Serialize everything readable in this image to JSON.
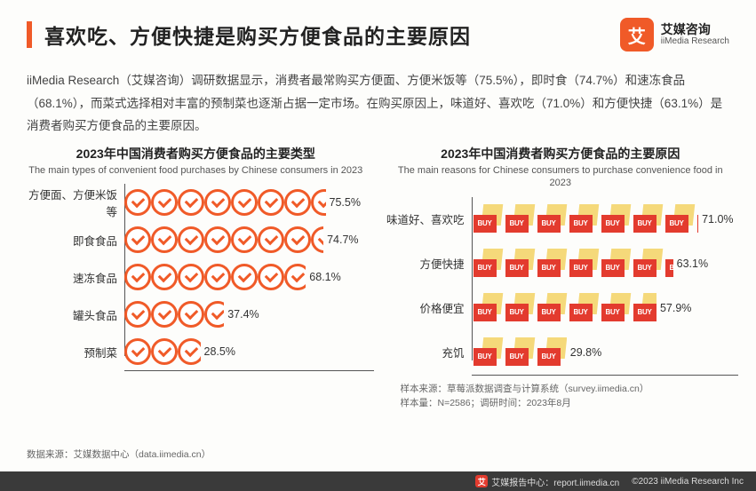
{
  "header": {
    "title": "喜欢吃、方便快捷是购买方便食品的主要原因",
    "logo_cn": "艾媒咨询",
    "logo_en": "iiMedia Research",
    "logo_glyph": "艾"
  },
  "description": "iiMedia Research（艾媒咨询）调研数据显示，消费者最常购买方便面、方便米饭等（75.5%），即时食（74.7%）和速冻食品（68.1%），而菜式选择相对丰富的预制菜也逐渐占据一定市场。在购买原因上，味道好、喜欢吃（71.0%）和方便快捷（63.1%）是消费者购买方便食品的主要原因。",
  "chart_left": {
    "title_cn": "2023年中国消费者购买方便食品的主要类型",
    "title_en": "The main types of convenient food purchases by Chinese consumers in 2023",
    "icon_color": "#f05a28",
    "icon_unit_pct": 10,
    "label_fontsize": 12.5,
    "value_fontsize": 12.5,
    "rows": [
      {
        "label": "方便面、方便米饭等",
        "value": 75.5,
        "display": "75.5%"
      },
      {
        "label": "即食食品",
        "value": 74.7,
        "display": "74.7%"
      },
      {
        "label": "速冻食品",
        "value": 68.1,
        "display": "68.1%"
      },
      {
        "label": "罐头食品",
        "value": 37.4,
        "display": "37.4%"
      },
      {
        "label": "预制菜",
        "value": 28.5,
        "display": "28.5%"
      }
    ]
  },
  "chart_right": {
    "title_cn": "2023年中国消费者购买方便食品的主要原因",
    "title_en": "The main reasons for Chinese consumers to purchase convenience food in 2023",
    "bag_tag": "BUY",
    "bag_red": "#e33b2e",
    "bag_yellow": "#f5d97a",
    "icon_unit_pct": 10,
    "label_fontsize": 12.5,
    "value_fontsize": 12.5,
    "rows": [
      {
        "label": "味道好、喜欢吃",
        "value": 71.0,
        "display": "71.0%"
      },
      {
        "label": "方便快捷",
        "value": 63.1,
        "display": "63.1%"
      },
      {
        "label": "价格便宜",
        "value": 57.9,
        "display": "57.9%"
      },
      {
        "label": "充饥",
        "value": 29.8,
        "display": "29.8%"
      }
    ]
  },
  "footnotes": {
    "left": "数据来源：艾媒数据中心（data.iimedia.cn）",
    "right_source": "样本来源：草莓派数据调查与计算系统（survey.iimedia.cn）",
    "right_sample": "样本量：N=2586；调研时间：2023年8月"
  },
  "footer": {
    "report_center": "艾媒报告中心：report.iimedia.cn",
    "copyright": "©2023  iiMedia Research  Inc",
    "logo_glyph": "艾"
  },
  "colors": {
    "accent": "#f05a28",
    "text": "#222222",
    "subtext": "#555555",
    "footer_bg": "#3a3a3a",
    "background": "#fdfdfb",
    "axis": "#555555"
  }
}
